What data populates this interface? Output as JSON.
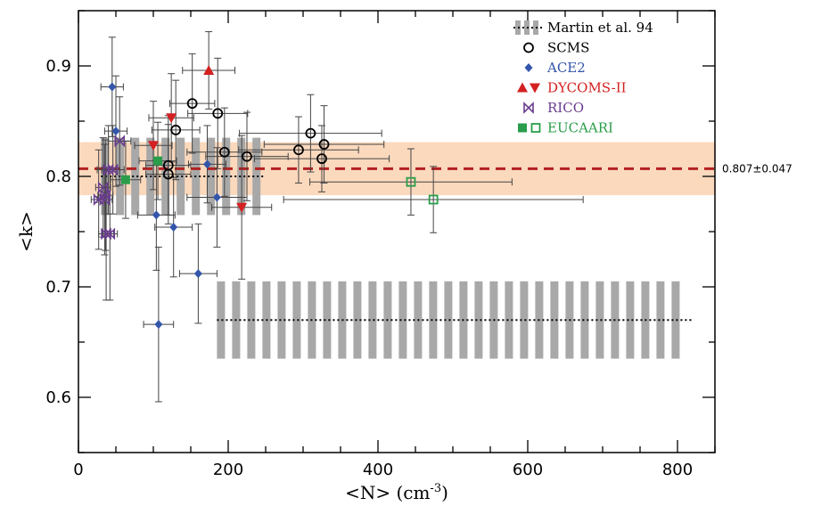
{
  "chart_data": {
    "type": "scatter",
    "title": "",
    "xlabel": "<N> (cm",
    "xlabel_sup": "-3",
    "xlabel_close": ")",
    "ylabel": "<k>",
    "xlim": [
      0,
      850
    ],
    "ylim": [
      0.55,
      0.95
    ],
    "x_ticks": [
      0,
      200,
      400,
      600,
      800
    ],
    "x_tick_labels": [
      "0",
      "200",
      "400",
      "600",
      "800"
    ],
    "y_ticks": [
      0.6,
      0.7,
      0.8,
      0.9
    ],
    "y_tick_labels": [
      "0.6",
      "0.7",
      "0.8",
      "0.9"
    ],
    "grid": false,
    "legend_position": "top-right",
    "mean": {
      "value": 0.807,
      "std": 0.047,
      "label": "0.807±0.047",
      "line_color": "#b22222",
      "band_color": "#fbd9bd"
    },
    "martin_bands": [
      {
        "x_range": [
          30,
          250
        ],
        "y_range": [
          0.765,
          0.835
        ],
        "center": 0.8
      },
      {
        "x_range": [
          185,
          820
        ],
        "y_range": [
          0.635,
          0.705
        ],
        "center": 0.67
      }
    ],
    "legend": [
      {
        "label": "Martin et al. 94",
        "color": "#000000",
        "marker": "hatch-band"
      },
      {
        "label": "SCMS",
        "color": "#000000",
        "marker": "open-circle"
      },
      {
        "label": "ACE2",
        "color": "#3355aa",
        "marker": "diamond"
      },
      {
        "label": "DYCOMS-II",
        "color": "#d42020",
        "marker": "triangles"
      },
      {
        "label": "RICO",
        "color": "#6a3d8f",
        "marker": "bowtie"
      },
      {
        "label": "EUCAARI",
        "color": "#2a9d4a",
        "marker": "squares"
      }
    ],
    "series": [
      {
        "name": "SCMS",
        "marker": "open-circle",
        "color": "#000000",
        "points": [
          {
            "x": 152,
            "y": 0.866,
            "xerr": 30,
            "yerr": 0.045
          },
          {
            "x": 186,
            "y": 0.857,
            "xerr": 40,
            "yerr": 0.05
          },
          {
            "x": 130,
            "y": 0.842,
            "xerr": 32,
            "yerr": 0.045
          },
          {
            "x": 310,
            "y": 0.839,
            "xerr": 95,
            "yerr": 0.035
          },
          {
            "x": 328,
            "y": 0.829,
            "xerr": 80,
            "yerr": 0.035
          },
          {
            "x": 195,
            "y": 0.822,
            "xerr": 50,
            "yerr": 0.04
          },
          {
            "x": 294,
            "y": 0.824,
            "xerr": 80,
            "yerr": 0.03
          },
          {
            "x": 225,
            "y": 0.818,
            "xerr": 55,
            "yerr": 0.04
          },
          {
            "x": 325,
            "y": 0.816,
            "xerr": 90,
            "yerr": 0.03
          },
          {
            "x": 120,
            "y": 0.81,
            "xerr": 30,
            "yerr": 0.045
          },
          {
            "x": 120,
            "y": 0.802,
            "xerr": 30,
            "yerr": 0.045
          }
        ]
      },
      {
        "name": "ACE2",
        "marker": "diamond",
        "color": "#3355aa",
        "points": [
          {
            "x": 45,
            "y": 0.881,
            "xerr": 15,
            "yerr": 0.045
          },
          {
            "x": 50,
            "y": 0.841,
            "xerr": 15,
            "yerr": 0.05
          },
          {
            "x": 172,
            "y": 0.811,
            "xerr": 25,
            "yerr": 0.035
          },
          {
            "x": 185,
            "y": 0.781,
            "xerr": 40,
            "yerr": 0.045
          },
          {
            "x": 104,
            "y": 0.765,
            "xerr": 25,
            "yerr": 0.05
          },
          {
            "x": 127,
            "y": 0.754,
            "xerr": 25,
            "yerr": 0.045
          },
          {
            "x": 160,
            "y": 0.712,
            "xerr": 25,
            "yerr": 0.045
          },
          {
            "x": 107,
            "y": 0.666,
            "xerr": 20,
            "yerr": 0.07
          }
        ]
      },
      {
        "name": "DYCOMS-II",
        "marker": "triangle-up",
        "color": "#d42020",
        "points": [
          {
            "x": 174,
            "y": 0.896,
            "xerr": 35,
            "yerr": 0.035
          }
        ]
      },
      {
        "name": "DYCOMS-II",
        "marker": "triangle-down",
        "color": "#d42020",
        "points": [
          {
            "x": 124,
            "y": 0.853,
            "xerr": 30,
            "yerr": 0.04
          },
          {
            "x": 100,
            "y": 0.828,
            "xerr": 25,
            "yerr": 0.04
          },
          {
            "x": 218,
            "y": 0.772,
            "xerr": 40,
            "yerr": 0.065
          }
        ]
      },
      {
        "name": "RICO",
        "marker": "bowtie",
        "color": "#6a3d8f",
        "points": [
          {
            "x": 55,
            "y": 0.832,
            "xerr": 15,
            "yerr": 0.04
          },
          {
            "x": 40,
            "y": 0.806,
            "xerr": 15,
            "yerr": 0.04
          },
          {
            "x": 46,
            "y": 0.806,
            "xerr": 15,
            "yerr": 0.04
          },
          {
            "x": 33,
            "y": 0.79,
            "xerr": 10,
            "yerr": 0.045
          },
          {
            "x": 36,
            "y": 0.783,
            "xerr": 10,
            "yerr": 0.05
          },
          {
            "x": 27,
            "y": 0.779,
            "xerr": 10,
            "yerr": 0.045
          },
          {
            "x": 35,
            "y": 0.779,
            "xerr": 10,
            "yerr": 0.05
          },
          {
            "x": 37,
            "y": 0.748,
            "xerr": 10,
            "yerr": 0.06
          },
          {
            "x": 42,
            "y": 0.748,
            "xerr": 10,
            "yerr": 0.06
          }
        ]
      },
      {
        "name": "EUCAARI",
        "marker": "filled-square",
        "color": "#2a9d4a",
        "points": [
          {
            "x": 106,
            "y": 0.814,
            "xerr": 25,
            "yerr": 0.035
          },
          {
            "x": 63,
            "y": 0.797,
            "xerr": 20,
            "yerr": 0.035
          }
        ]
      },
      {
        "name": "EUCAARI",
        "marker": "open-square",
        "color": "#2a9d4a",
        "points": [
          {
            "x": 444,
            "y": 0.795,
            "xerr": 135,
            "yerr": 0.03
          },
          {
            "x": 474,
            "y": 0.779,
            "xerr": 200,
            "yerr": 0.03
          }
        ]
      }
    ]
  }
}
